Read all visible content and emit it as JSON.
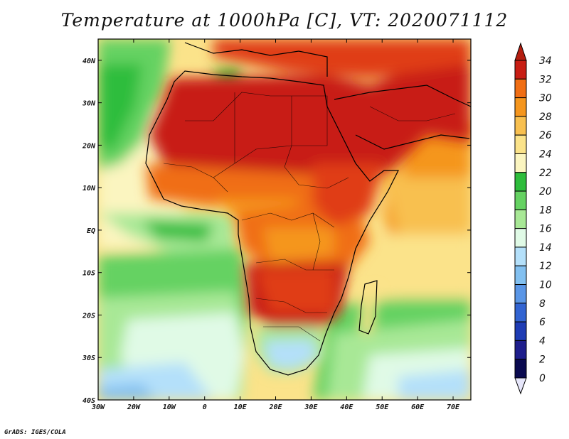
{
  "title": "Temperature at 1000hPa [C], VT: 2020071112",
  "credit": "GrADS: IGES/COLA",
  "map": {
    "lat_labels": [
      "40N",
      "30N",
      "20N",
      "10N",
      "EQ",
      "10S",
      "20S",
      "30S",
      "40S"
    ],
    "lon_labels": [
      "30W",
      "20W",
      "10W",
      "0",
      "10E",
      "20E",
      "30E",
      "40E",
      "50E",
      "60E",
      "70E"
    ],
    "lat_range": [
      -40,
      45
    ],
    "lon_range": [
      -30,
      75
    ],
    "variable": "Temperature at 1000hPa",
    "units": "C"
  },
  "colorbar": {
    "levels": [
      "34",
      "32",
      "30",
      "28",
      "26",
      "24",
      "22",
      "20",
      "18",
      "16",
      "14",
      "12",
      "10",
      "8",
      "6",
      "4",
      "2",
      "0"
    ],
    "colors": [
      "#c81e14",
      "#e03c14",
      "#f06e14",
      "#f5961e",
      "#f8c050",
      "#fbe38a",
      "#fbf5c0",
      "#2ebd3c",
      "#65d262",
      "#a8e896",
      "#e0fae6",
      "#b4e0fa",
      "#82c0f0",
      "#5a96e6",
      "#3264d2",
      "#1e3cb4",
      "#1e1e8c",
      "#0a0a50"
    ],
    "top_arrow_color": "#b41e10",
    "bottom_arrow_color": "#e6e6fa"
  }
}
